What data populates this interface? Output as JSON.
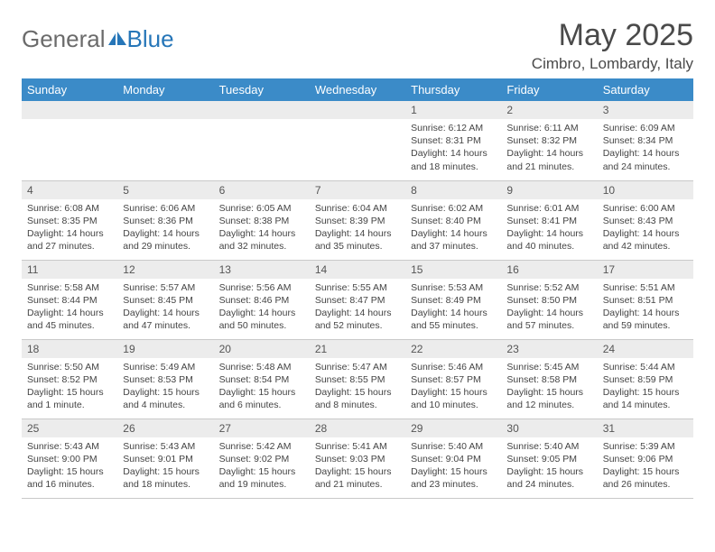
{
  "brand": {
    "word1": "General",
    "word2": "Blue",
    "word1_color": "#6b6b6b",
    "word2_color": "#2676b8",
    "icon_color": "#2676b8"
  },
  "header": {
    "month_title": "May 2025",
    "location": "Cimbro, Lombardy, Italy"
  },
  "colors": {
    "header_bg": "#3b8bc8",
    "header_fg": "#ffffff",
    "daynum_bg": "#ececec",
    "border": "#c9c9c9",
    "text": "#444444"
  },
  "day_headers": [
    "Sunday",
    "Monday",
    "Tuesday",
    "Wednesday",
    "Thursday",
    "Friday",
    "Saturday"
  ],
  "weeks": [
    [
      null,
      null,
      null,
      null,
      {
        "n": "1",
        "sunrise": "6:12 AM",
        "sunset": "8:31 PM",
        "daylight": "14 hours and 18 minutes."
      },
      {
        "n": "2",
        "sunrise": "6:11 AM",
        "sunset": "8:32 PM",
        "daylight": "14 hours and 21 minutes."
      },
      {
        "n": "3",
        "sunrise": "6:09 AM",
        "sunset": "8:34 PM",
        "daylight": "14 hours and 24 minutes."
      }
    ],
    [
      {
        "n": "4",
        "sunrise": "6:08 AM",
        "sunset": "8:35 PM",
        "daylight": "14 hours and 27 minutes."
      },
      {
        "n": "5",
        "sunrise": "6:06 AM",
        "sunset": "8:36 PM",
        "daylight": "14 hours and 29 minutes."
      },
      {
        "n": "6",
        "sunrise": "6:05 AM",
        "sunset": "8:38 PM",
        "daylight": "14 hours and 32 minutes."
      },
      {
        "n": "7",
        "sunrise": "6:04 AM",
        "sunset": "8:39 PM",
        "daylight": "14 hours and 35 minutes."
      },
      {
        "n": "8",
        "sunrise": "6:02 AM",
        "sunset": "8:40 PM",
        "daylight": "14 hours and 37 minutes."
      },
      {
        "n": "9",
        "sunrise": "6:01 AM",
        "sunset": "8:41 PM",
        "daylight": "14 hours and 40 minutes."
      },
      {
        "n": "10",
        "sunrise": "6:00 AM",
        "sunset": "8:43 PM",
        "daylight": "14 hours and 42 minutes."
      }
    ],
    [
      {
        "n": "11",
        "sunrise": "5:58 AM",
        "sunset": "8:44 PM",
        "daylight": "14 hours and 45 minutes."
      },
      {
        "n": "12",
        "sunrise": "5:57 AM",
        "sunset": "8:45 PM",
        "daylight": "14 hours and 47 minutes."
      },
      {
        "n": "13",
        "sunrise": "5:56 AM",
        "sunset": "8:46 PM",
        "daylight": "14 hours and 50 minutes."
      },
      {
        "n": "14",
        "sunrise": "5:55 AM",
        "sunset": "8:47 PM",
        "daylight": "14 hours and 52 minutes."
      },
      {
        "n": "15",
        "sunrise": "5:53 AM",
        "sunset": "8:49 PM",
        "daylight": "14 hours and 55 minutes."
      },
      {
        "n": "16",
        "sunrise": "5:52 AM",
        "sunset": "8:50 PM",
        "daylight": "14 hours and 57 minutes."
      },
      {
        "n": "17",
        "sunrise": "5:51 AM",
        "sunset": "8:51 PM",
        "daylight": "14 hours and 59 minutes."
      }
    ],
    [
      {
        "n": "18",
        "sunrise": "5:50 AM",
        "sunset": "8:52 PM",
        "daylight": "15 hours and 1 minute."
      },
      {
        "n": "19",
        "sunrise": "5:49 AM",
        "sunset": "8:53 PM",
        "daylight": "15 hours and 4 minutes."
      },
      {
        "n": "20",
        "sunrise": "5:48 AM",
        "sunset": "8:54 PM",
        "daylight": "15 hours and 6 minutes."
      },
      {
        "n": "21",
        "sunrise": "5:47 AM",
        "sunset": "8:55 PM",
        "daylight": "15 hours and 8 minutes."
      },
      {
        "n": "22",
        "sunrise": "5:46 AM",
        "sunset": "8:57 PM",
        "daylight": "15 hours and 10 minutes."
      },
      {
        "n": "23",
        "sunrise": "5:45 AM",
        "sunset": "8:58 PM",
        "daylight": "15 hours and 12 minutes."
      },
      {
        "n": "24",
        "sunrise": "5:44 AM",
        "sunset": "8:59 PM",
        "daylight": "15 hours and 14 minutes."
      }
    ],
    [
      {
        "n": "25",
        "sunrise": "5:43 AM",
        "sunset": "9:00 PM",
        "daylight": "15 hours and 16 minutes."
      },
      {
        "n": "26",
        "sunrise": "5:43 AM",
        "sunset": "9:01 PM",
        "daylight": "15 hours and 18 minutes."
      },
      {
        "n": "27",
        "sunrise": "5:42 AM",
        "sunset": "9:02 PM",
        "daylight": "15 hours and 19 minutes."
      },
      {
        "n": "28",
        "sunrise": "5:41 AM",
        "sunset": "9:03 PM",
        "daylight": "15 hours and 21 minutes."
      },
      {
        "n": "29",
        "sunrise": "5:40 AM",
        "sunset": "9:04 PM",
        "daylight": "15 hours and 23 minutes."
      },
      {
        "n": "30",
        "sunrise": "5:40 AM",
        "sunset": "9:05 PM",
        "daylight": "15 hours and 24 minutes."
      },
      {
        "n": "31",
        "sunrise": "5:39 AM",
        "sunset": "9:06 PM",
        "daylight": "15 hours and 26 minutes."
      }
    ]
  ],
  "labels": {
    "sunrise_prefix": "Sunrise: ",
    "sunset_prefix": "Sunset: ",
    "daylight_prefix": "Daylight: "
  }
}
